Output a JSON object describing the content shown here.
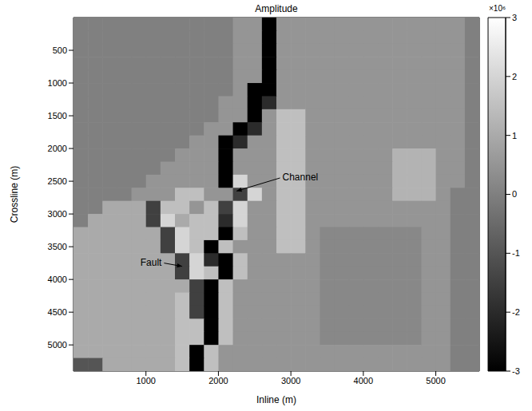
{
  "chart_data": {
    "type": "heatmap",
    "title": "Amplitude",
    "x_label": "Inline (m)",
    "y_label": "Crossline (m)",
    "x": [
      100,
      300,
      500,
      700,
      900,
      1100,
      1300,
      1500,
      1700,
      1900,
      2100,
      2300,
      2500,
      2700,
      2900,
      3100,
      3300,
      3500,
      3700,
      3900,
      4100,
      4300,
      4500,
      4700,
      4900,
      5100,
      5300,
      5500
    ],
    "y": [
      100,
      300,
      500,
      700,
      900,
      1100,
      1300,
      1500,
      1700,
      1900,
      2100,
      2300,
      2500,
      2700,
      2900,
      3100,
      3300,
      3500,
      3700,
      3900,
      4100,
      4300,
      4500,
      4700,
      4900,
      5100,
      5300
    ],
    "values": [
      [
        0,
        0,
        0,
        0,
        0,
        0,
        0,
        0,
        0,
        0,
        0,
        0.5,
        0.5,
        -3,
        0.5,
        0.5,
        0.5,
        0.5,
        0.5,
        0.5,
        0.5,
        0.5,
        0.5,
        0.5,
        0.5,
        0.5,
        0.5,
        0
      ],
      [
        0,
        0,
        0,
        0,
        0,
        0,
        0,
        0,
        0,
        0,
        0,
        0.5,
        0.5,
        -3,
        0.5,
        0.5,
        0.5,
        0.5,
        0.5,
        0.5,
        0.5,
        0.5,
        0.5,
        0.5,
        0.5,
        0.5,
        0.5,
        0
      ],
      [
        0,
        0,
        0,
        0,
        0,
        0,
        0,
        0,
        0,
        0,
        0,
        0.5,
        0.5,
        -3,
        0.5,
        0.5,
        0.5,
        0.5,
        0.5,
        0.5,
        0.5,
        0.5,
        0.5,
        0.5,
        0.5,
        0.5,
        0.5,
        0
      ],
      [
        0,
        0,
        0,
        0,
        0,
        0,
        0,
        0,
        0,
        0,
        0,
        0.5,
        0.5,
        -3,
        0.5,
        0.5,
        0.5,
        0.5,
        0.5,
        0.5,
        0.5,
        0.5,
        0.5,
        0.5,
        0.5,
        0.5,
        0.5,
        0
      ],
      [
        0,
        0,
        0,
        0,
        0,
        0,
        0,
        0,
        0,
        0,
        0,
        0.5,
        0.5,
        -3,
        0.5,
        0.5,
        0.5,
        0.5,
        0.5,
        0.5,
        0.5,
        0.5,
        0.5,
        0.5,
        0.5,
        0.5,
        0.5,
        0
      ],
      [
        0,
        0,
        0,
        0,
        0,
        0,
        0,
        0,
        0,
        0,
        0,
        0.5,
        -3,
        -3,
        0.5,
        0.5,
        0.5,
        0.5,
        0.5,
        0.5,
        0.5,
        0.5,
        0.5,
        0.5,
        0.5,
        0.5,
        0.5,
        0
      ],
      [
        0,
        0,
        0,
        0,
        0,
        0,
        0,
        0,
        0,
        0,
        0.5,
        0.5,
        -3,
        -2,
        0.5,
        0.5,
        0.5,
        0.5,
        0.5,
        0.5,
        0.5,
        0.5,
        0.5,
        0.5,
        0.5,
        0.5,
        0.5,
        0
      ],
      [
        0,
        0,
        0,
        0,
        0,
        0,
        0,
        0,
        0,
        0,
        0.5,
        0.5,
        -3,
        0.5,
        1.5,
        1.5,
        0.5,
        0.5,
        0.5,
        0.5,
        0.5,
        0.5,
        0.5,
        0.5,
        0.5,
        0.5,
        0.5,
        0
      ],
      [
        0,
        0,
        0,
        0,
        0,
        0,
        0,
        0,
        0,
        0.5,
        0.5,
        -3,
        -2,
        0.5,
        1.5,
        1.5,
        0.5,
        0.5,
        0.5,
        0.5,
        0.5,
        0.5,
        0.5,
        0.5,
        0.5,
        0.5,
        0.5,
        0
      ],
      [
        0,
        0,
        0,
        0,
        0,
        0,
        0,
        0,
        0.5,
        0.5,
        -3,
        -2,
        0.5,
        0.5,
        1.5,
        1.5,
        0.5,
        0.5,
        0.5,
        0.5,
        0.5,
        0.5,
        0.5,
        0.5,
        0.5,
        0.5,
        0.5,
        0
      ],
      [
        0,
        0,
        0,
        0,
        0,
        0,
        0,
        0.5,
        0.5,
        0.5,
        -3,
        0.5,
        0.5,
        0.5,
        1.5,
        1.5,
        0.5,
        0.5,
        0.5,
        0.5,
        0.5,
        0.5,
        1.2,
        1.2,
        1.2,
        0.5,
        0.5,
        0
      ],
      [
        0,
        0,
        0,
        0,
        0,
        0,
        0.5,
        0.5,
        0.5,
        0.5,
        -3,
        0.5,
        0.5,
        0.5,
        1.5,
        1.5,
        0.5,
        0.5,
        0.5,
        0.5,
        0.5,
        0.5,
        1.2,
        1.2,
        1.2,
        0.5,
        0.5,
        0
      ],
      [
        0,
        0,
        0,
        0,
        0,
        0.5,
        0.5,
        0.5,
        0.5,
        0.5,
        -3,
        2,
        0.5,
        0.5,
        1.5,
        1.5,
        0.5,
        0.5,
        0.5,
        0.5,
        0.5,
        0.5,
        1.2,
        1.2,
        1.2,
        0.5,
        0.5,
        0
      ],
      [
        0,
        0,
        0,
        0,
        0.5,
        0.5,
        0.5,
        1.5,
        1.5,
        0.5,
        0.5,
        -1.5,
        2,
        0.5,
        1.5,
        1.5,
        0.5,
        0.5,
        0.5,
        0.5,
        0.5,
        0.5,
        1.2,
        1.2,
        1.2,
        0.5,
        0,
        0
      ],
      [
        0,
        0,
        1,
        1,
        1,
        -1.5,
        1.5,
        1.5,
        0.5,
        1.5,
        -1.5,
        2,
        0.5,
        0.5,
        1.5,
        1.5,
        0.5,
        0.5,
        0.5,
        0.5,
        0.5,
        0.5,
        0.5,
        0.5,
        0.5,
        0.5,
        0,
        0
      ],
      [
        0,
        1,
        1,
        1,
        1,
        -1.5,
        2,
        1,
        1.5,
        1.5,
        -2,
        2,
        0.5,
        0.5,
        1.5,
        1.5,
        0.5,
        0.5,
        0.5,
        0.5,
        0.5,
        0.5,
        0.5,
        0.5,
        0.5,
        0.5,
        0,
        0
      ],
      [
        1,
        1,
        1,
        1,
        1,
        1,
        -1.5,
        2,
        1.5,
        1.5,
        -3,
        1.5,
        0.5,
        0.5,
        1.5,
        1.5,
        0.5,
        0.2,
        0.2,
        0.2,
        0.2,
        0.2,
        0.2,
        0.2,
        0.5,
        0.5,
        0,
        0
      ],
      [
        1,
        1,
        1,
        1,
        1,
        1,
        -1.5,
        2,
        1.5,
        -3,
        1.5,
        0.5,
        0.5,
        0.5,
        1.5,
        1.5,
        0.5,
        0.2,
        0.2,
        0.2,
        0.2,
        0.2,
        0.2,
        0.2,
        0.5,
        0.5,
        0,
        0
      ],
      [
        1,
        1,
        1,
        1,
        1,
        1,
        1,
        -1.5,
        2,
        -2,
        -3,
        1.5,
        0.5,
        0.5,
        0.5,
        0.5,
        0.5,
        0.2,
        0.2,
        0.2,
        0.2,
        0.2,
        0.2,
        0.2,
        0.5,
        0.5,
        0,
        0
      ],
      [
        1,
        1,
        1,
        1,
        1,
        1,
        1,
        -1.5,
        2,
        1.5,
        -3,
        1.5,
        0.5,
        0.5,
        0.5,
        0.5,
        0.5,
        0.2,
        0.2,
        0.2,
        0.2,
        0.2,
        0.2,
        0.2,
        0.5,
        0.5,
        0,
        0
      ],
      [
        1,
        1,
        1,
        1,
        1,
        1,
        1,
        1,
        -1.5,
        -3,
        1.5,
        0.5,
        0.5,
        0.5,
        0.5,
        0.5,
        0.5,
        0.2,
        0.2,
        0.2,
        0.2,
        0.2,
        0.2,
        0.2,
        0.5,
        0.5,
        0,
        0
      ],
      [
        1,
        1,
        1,
        1,
        1,
        1,
        1,
        1.5,
        -1.5,
        -3,
        1.5,
        0.5,
        0.5,
        0.5,
        0.5,
        0.5,
        0.5,
        0.2,
        0.2,
        0.2,
        0.2,
        0.2,
        0.2,
        0.2,
        0.5,
        0.5,
        0,
        0
      ],
      [
        1,
        1,
        1,
        1,
        1,
        1,
        1,
        1.5,
        -1.5,
        -3,
        1.5,
        0.5,
        0.5,
        0.5,
        0.5,
        0.5,
        0.5,
        0.2,
        0.2,
        0.2,
        0.2,
        0.2,
        0.2,
        0.2,
        0.5,
        0.5,
        0,
        0
      ],
      [
        1,
        1,
        1,
        1,
        1,
        1,
        1,
        1.5,
        1.5,
        -3,
        1.5,
        0.5,
        0.5,
        0.5,
        0.5,
        0.5,
        0.5,
        0.2,
        0.2,
        0.2,
        0.2,
        0.2,
        0.2,
        0.2,
        0.5,
        0.5,
        0,
        0
      ],
      [
        1,
        1,
        1,
        1,
        1,
        1,
        1,
        1.5,
        1.5,
        -3,
        1.5,
        0.5,
        0.5,
        0.5,
        0.5,
        0.5,
        0.5,
        0.2,
        0.2,
        0.2,
        0.2,
        0.2,
        0.2,
        0.2,
        0.5,
        0.5,
        0,
        0
      ],
      [
        1,
        1,
        1,
        1,
        1,
        1,
        1,
        1.5,
        -3,
        1.5,
        0.5,
        0.5,
        0.5,
        0.5,
        0.5,
        0.5,
        0.5,
        0.5,
        0.5,
        0.5,
        0.5,
        0.5,
        0.5,
        0.5,
        0.5,
        0.5,
        0,
        0
      ],
      [
        -1,
        -1,
        1,
        1,
        1,
        1,
        1,
        1.5,
        -3,
        1.5,
        0.5,
        0.5,
        0.5,
        0.5,
        0.5,
        0.5,
        0.5,
        0.5,
        0.5,
        0.5,
        0.5,
        0.5,
        0.5,
        0.5,
        0.5,
        0.5,
        0,
        0
      ]
    ],
    "xlim": [
      0,
      5600
    ],
    "ylim": [
      0,
      5400
    ],
    "xticks": [
      1000,
      2000,
      3000,
      4000,
      5000
    ],
    "yticks": [
      500,
      1000,
      1500,
      2000,
      2500,
      3000,
      3500,
      4000,
      4500,
      5000
    ],
    "colorbar": {
      "range": [
        -3,
        3
      ],
      "ticks": [
        -3,
        -2,
        -1,
        0,
        1,
        2,
        3
      ],
      "label": "×10⁶"
    },
    "annotations": [
      {
        "text": "Channel",
        "x": 2850,
        "y": 2450,
        "target": [
          2250,
          2650
        ]
      },
      {
        "text": "Fault",
        "x": 1250,
        "y": 3750,
        "target": [
          1500,
          3800
        ]
      }
    ]
  }
}
